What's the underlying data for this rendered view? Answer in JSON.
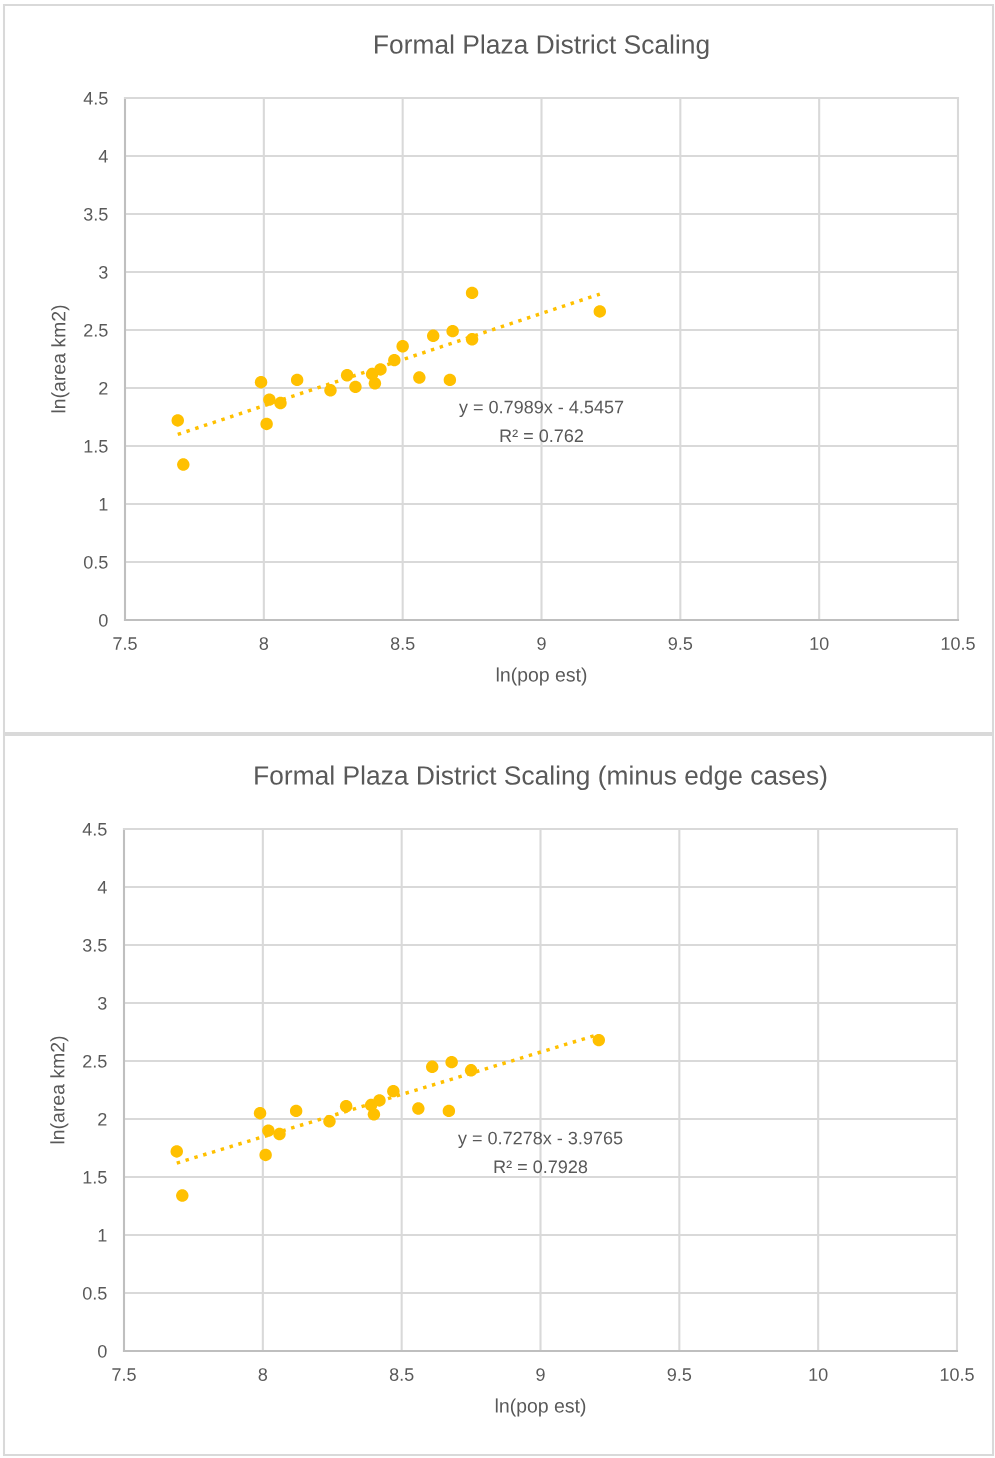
{
  "chart_data": [
    {
      "type": "scatter",
      "title": "Formal Plaza District Scaling",
      "xlabel": "ln(pop est)",
      "ylabel": "ln(area km2)",
      "xlim": [
        7.5,
        10.5
      ],
      "xticks": [
        7.5,
        8,
        8.5,
        9,
        9.5,
        10,
        10.5
      ],
      "ylim": [
        0,
        4.5
      ],
      "yticks": [
        0,
        0.5,
        1,
        1.5,
        2,
        2.5,
        3,
        3.5,
        4,
        4.5
      ],
      "grid": true,
      "marker": "circle",
      "annotations": [
        "y = 0.7989x - 4.5457",
        "R² = 0.762"
      ],
      "series": [
        {
          "type": "line",
          "color": "#ffc000",
          "line_style": "dotted",
          "marker": "none",
          "x": [
            7.69,
            9.21
          ],
          "values": [
            1.6,
            2.81
          ]
        },
        {
          "color": "#ffc000",
          "x": [
            7.69,
            7.71,
            7.99,
            8.02,
            8.01,
            8.06,
            8.12,
            8.24,
            8.3,
            8.33,
            8.39,
            8.4,
            8.42,
            8.47,
            8.5,
            8.56,
            8.61,
            8.68,
            8.67,
            8.75,
            8.75,
            9.21
          ],
          "values": [
            1.72,
            1.34,
            2.05,
            1.9,
            1.69,
            1.87,
            2.07,
            1.98,
            2.11,
            2.01,
            2.12,
            2.04,
            2.16,
            2.24,
            2.36,
            2.09,
            2.45,
            2.49,
            2.07,
            2.42,
            2.82,
            2.66
          ]
        }
      ]
    },
    {
      "type": "scatter",
      "title": "Formal Plaza District Scaling (minus edge cases)",
      "xlabel": "ln(pop est)",
      "ylabel": "ln(area km2)",
      "xlim": [
        7.5,
        10.5
      ],
      "xticks": [
        7.5,
        8,
        8.5,
        9,
        9.5,
        10,
        10.5
      ],
      "ylim": [
        0,
        4.5
      ],
      "yticks": [
        0,
        0.5,
        1,
        1.5,
        2,
        2.5,
        3,
        3.5,
        4,
        4.5
      ],
      "grid": true,
      "marker": "circle",
      "annotations": [
        "y = 0.7278x - 3.9765",
        "R² = 0.7928"
      ],
      "series": [
        {
          "type": "line",
          "color": "#ffc000",
          "line_style": "dotted",
          "marker": "none",
          "x": [
            7.69,
            9.21
          ],
          "values": [
            1.62,
            2.73
          ]
        },
        {
          "color": "#ffc000",
          "x": [
            7.69,
            7.71,
            7.99,
            8.02,
            8.01,
            8.06,
            8.12,
            8.24,
            8.3,
            8.39,
            8.4,
            8.42,
            8.47,
            8.56,
            8.61,
            8.68,
            8.67,
            8.75,
            9.21
          ],
          "values": [
            1.72,
            1.34,
            2.05,
            1.9,
            1.69,
            1.87,
            2.07,
            1.98,
            2.11,
            2.12,
            2.04,
            2.16,
            2.24,
            2.09,
            2.45,
            2.49,
            2.07,
            2.42,
            2.68
          ]
        }
      ]
    }
  ]
}
